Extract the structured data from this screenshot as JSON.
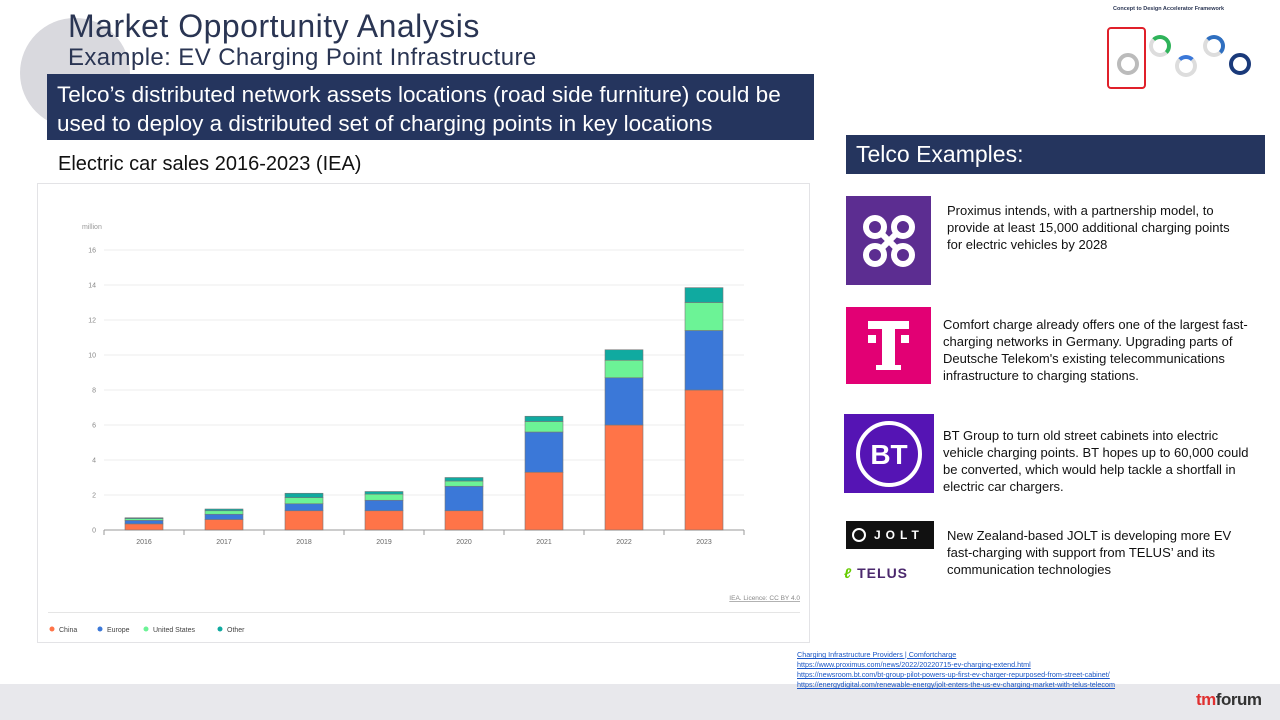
{
  "header": {
    "title": "Market Opportunity Analysis",
    "subtitle": "Example: EV Charging Point Infrastructure"
  },
  "banner": {
    "text": "Telco’s distributed network assets locations (road side furniture) could be used to deploy a distributed set of charging points in key locations"
  },
  "chart_heading": "Electric car sales 2016-2023 (IEA)",
  "chart_data": {
    "type": "bar",
    "stacked": true,
    "ylabel": "million",
    "ylim": [
      0,
      16
    ],
    "yticks": [
      0,
      2,
      4,
      6,
      8,
      10,
      12,
      14,
      16
    ],
    "categories": [
      "2016",
      "2017",
      "2018",
      "2019",
      "2020",
      "2021",
      "2022",
      "2023"
    ],
    "series": [
      {
        "name": "China",
        "color": "#ff7448",
        "values": [
          0.35,
          0.6,
          1.1,
          1.1,
          1.1,
          3.3,
          6.0,
          8.0
        ]
      },
      {
        "name": "Europe",
        "color": "#3b78d8",
        "values": [
          0.2,
          0.3,
          0.4,
          0.6,
          1.4,
          2.3,
          2.7,
          3.4
        ]
      },
      {
        "name": "United States",
        "color": "#6cf396",
        "values": [
          0.1,
          0.2,
          0.35,
          0.35,
          0.3,
          0.6,
          1.0,
          1.6
        ]
      },
      {
        "name": "Other",
        "color": "#10aaa0",
        "values": [
          0.05,
          0.1,
          0.25,
          0.15,
          0.2,
          0.3,
          0.6,
          0.85
        ]
      }
    ],
    "source": "IEA. Licence: CC BY 4.0",
    "grid": true,
    "legend_position": "bottom-left"
  },
  "framework": {
    "title": "Concept to Design Accelerator Framework"
  },
  "telco": {
    "header": "Telco Examples:",
    "examples": [
      {
        "logo": "proximus-logo",
        "text": "Proximus intends, with a partnership model, to provide at least 15,000 additional charging points for electric vehicles by 2028"
      },
      {
        "logo": "t-mobile-logo",
        "text": "Comfort charge already offers one of the largest fast-charging networks in Germany. Upgrading parts of Deutsche Telekom's existing telecommunications infrastructure to charging stations."
      },
      {
        "logo": "bt-logo",
        "text": "BT Group to turn old street cabinets into electric vehicle charging points. BT hopes up to 60,000 could be converted, which would help tackle a shortfall in electric car chargers."
      },
      {
        "logo": "jolt-telus-logo",
        "text": "New Zealand-based JOLT is developing more EV fast-charging with support from TELUS’ and its communication technologies"
      }
    ],
    "logo_text": {
      "bt": "BT",
      "jolt": "JOLT",
      "telus": "TELUS"
    }
  },
  "links": [
    "Charging Infrastructure Providers | Comfortcharge",
    "https://www.proximus.com/news/2022/20220715-ev-charging-extend.html",
    "https://newsroom.bt.com/bt-group-pilot-powers-up-first-ev-charger-repurposed-from-street-cabinet/",
    "https://energydigital.com/renewable-energy/jolt-enters-the-us-ev-charging-market-with-telus-telecom"
  ],
  "brand": {
    "tm": "tm",
    "forum": "forum"
  }
}
